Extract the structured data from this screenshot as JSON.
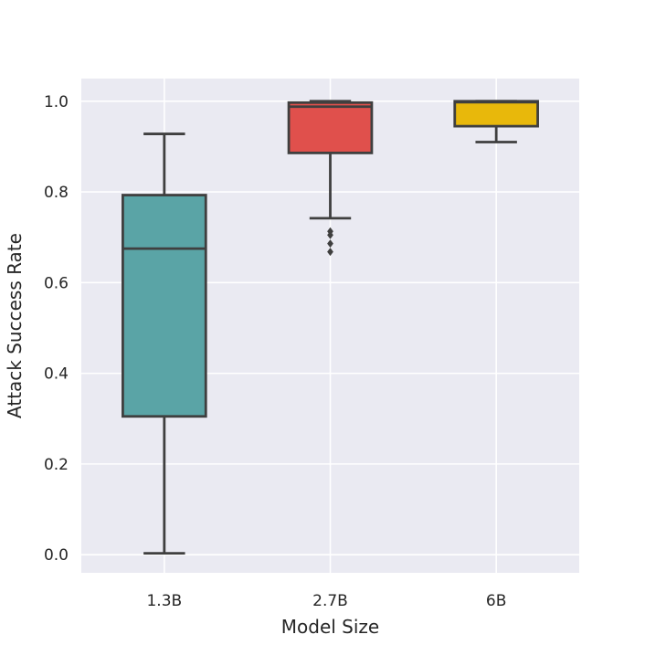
{
  "chart_data": {
    "type": "box",
    "xlabel": "Model Size",
    "ylabel": "Attack Success Rate",
    "ylim": [
      -0.04,
      1.05
    ],
    "yticks": [
      0.0,
      0.2,
      0.4,
      0.6,
      0.8,
      1.0
    ],
    "ytick_labels": [
      "0.0",
      "0.2",
      "0.4",
      "0.6",
      "0.8",
      "1.0"
    ],
    "grid": true,
    "categories": [
      "1.3B",
      "2.7B",
      "6B"
    ],
    "boxes": [
      {
        "category": "1.3B",
        "whisker_low": 0.003,
        "q1": 0.305,
        "median": 0.675,
        "q3": 0.793,
        "whisker_high": 0.928,
        "outliers": [],
        "color": "#5aa4a6"
      },
      {
        "category": "2.7B",
        "whisker_low": 0.742,
        "q1": 0.886,
        "median": 0.988,
        "q3": 0.997,
        "whisker_high": 1.0,
        "outliers": [
          0.713,
          0.705,
          0.686,
          0.668
        ],
        "color": "#e0504c"
      },
      {
        "category": "6B",
        "whisker_low": 0.91,
        "q1": 0.945,
        "median": 0.998,
        "q3": 1.0,
        "whisker_high": 1.0,
        "outliers": [],
        "color": "#e8b80b"
      }
    ],
    "plot_background": "#eaeaf2"
  }
}
